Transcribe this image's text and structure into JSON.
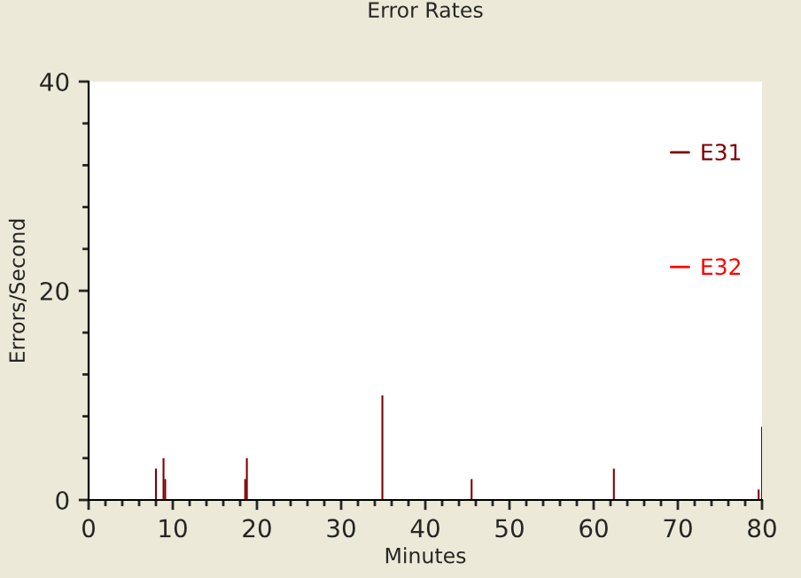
{
  "chart_data": {
    "type": "bar",
    "title": "Error Rates",
    "xlabel": "Minutes",
    "ylabel": "Errors/Second",
    "series": [
      {
        "name": "E31",
        "color": "#800000",
        "x": [
          8.0,
          8.9,
          9.1,
          18.6,
          18.8,
          34.9,
          45.5,
          62.4,
          79.6,
          80.0
        ],
        "values": [
          3,
          4,
          2,
          2,
          4,
          10,
          2,
          3,
          1,
          7
        ]
      },
      {
        "name": "E32",
        "color": "#ff0000"
      }
    ],
    "xlim": [
      0,
      80
    ],
    "xticks": [
      0,
      {
        "value": 2,
        "label": null
      },
      {
        "value": 4,
        "label": null
      },
      {
        "value": 6,
        "label": null
      },
      {
        "value": 8,
        "label": null
      },
      10,
      {
        "value": 12,
        "label": null
      },
      {
        "value": 14,
        "label": null
      },
      {
        "value": 16,
        "label": null
      },
      {
        "value": 18,
        "label": null
      },
      20,
      {
        "value": 22,
        "label": null
      },
      {
        "value": 24,
        "label": null
      },
      {
        "value": 26,
        "label": null
      },
      {
        "value": 28,
        "label": null
      },
      30,
      {
        "value": 32,
        "label": null
      },
      {
        "value": 34,
        "label": null
      },
      {
        "value": 36,
        "label": null
      },
      {
        "value": 38,
        "label": null
      },
      40,
      {
        "value": 42,
        "label": null
      },
      {
        "value": 44,
        "label": null
      },
      {
        "value": 46,
        "label": null
      },
      {
        "value": 48,
        "label": null
      },
      50,
      {
        "value": 52,
        "label": null
      },
      {
        "value": 54,
        "label": null
      },
      {
        "value": 56,
        "label": null
      },
      {
        "value": 58,
        "label": null
      },
      60,
      {
        "value": 62,
        "label": null
      },
      {
        "value": 64,
        "label": null
      },
      {
        "value": 66,
        "label": null
      },
      {
        "value": 68,
        "label": null
      },
      70,
      {
        "value": 72,
        "label": null
      },
      {
        "value": 74,
        "label": null
      },
      {
        "value": 76,
        "label": null
      },
      {
        "value": 78,
        "label": null
      },
      80
    ],
    "ylim": [
      0,
      40
    ],
    "yticks": [
      0,
      {
        "value": 4,
        "label": null
      },
      {
        "value": 8,
        "label": null
      },
      {
        "value": 12,
        "label": null
      },
      {
        "value": 16,
        "label": null
      },
      20,
      {
        "value": 24,
        "label": null
      },
      {
        "value": 28,
        "label": null
      },
      {
        "value": 32,
        "label": null
      },
      {
        "value": 36,
        "label": null
      },
      40
    ],
    "grid": false,
    "legend": "top right"
  }
}
